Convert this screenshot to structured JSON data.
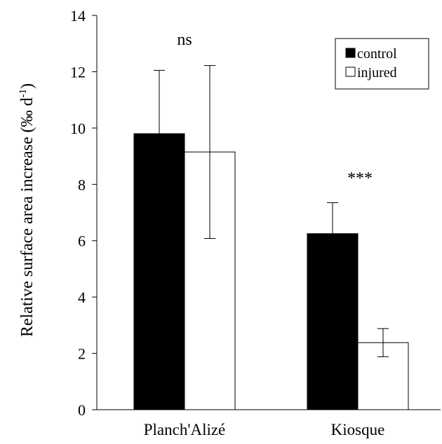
{
  "chart_data": {
    "type": "bar",
    "categories": [
      "Planch'Alizé",
      "Kiosque"
    ],
    "series": [
      {
        "name": "control",
        "color": "#000000",
        "values": [
          9.8,
          6.25
        ],
        "errors": [
          2.25,
          1.1
        ]
      },
      {
        "name": "injured",
        "color": "#ffffff",
        "values": [
          9.15,
          2.38
        ],
        "errors": [
          3.07,
          0.5
        ]
      }
    ],
    "ylabel": "Relative surface area increase (‰ d",
    "ylabel_sup": "-1",
    "ylabel_close": ")",
    "ylim": [
      0,
      14
    ],
    "yticks": [
      "0",
      "2",
      "4",
      "6",
      "8",
      "10",
      "12",
      "14"
    ],
    "annotations": [
      "ns",
      "***"
    ],
    "legend_position": "top-right",
    "grid": false
  }
}
